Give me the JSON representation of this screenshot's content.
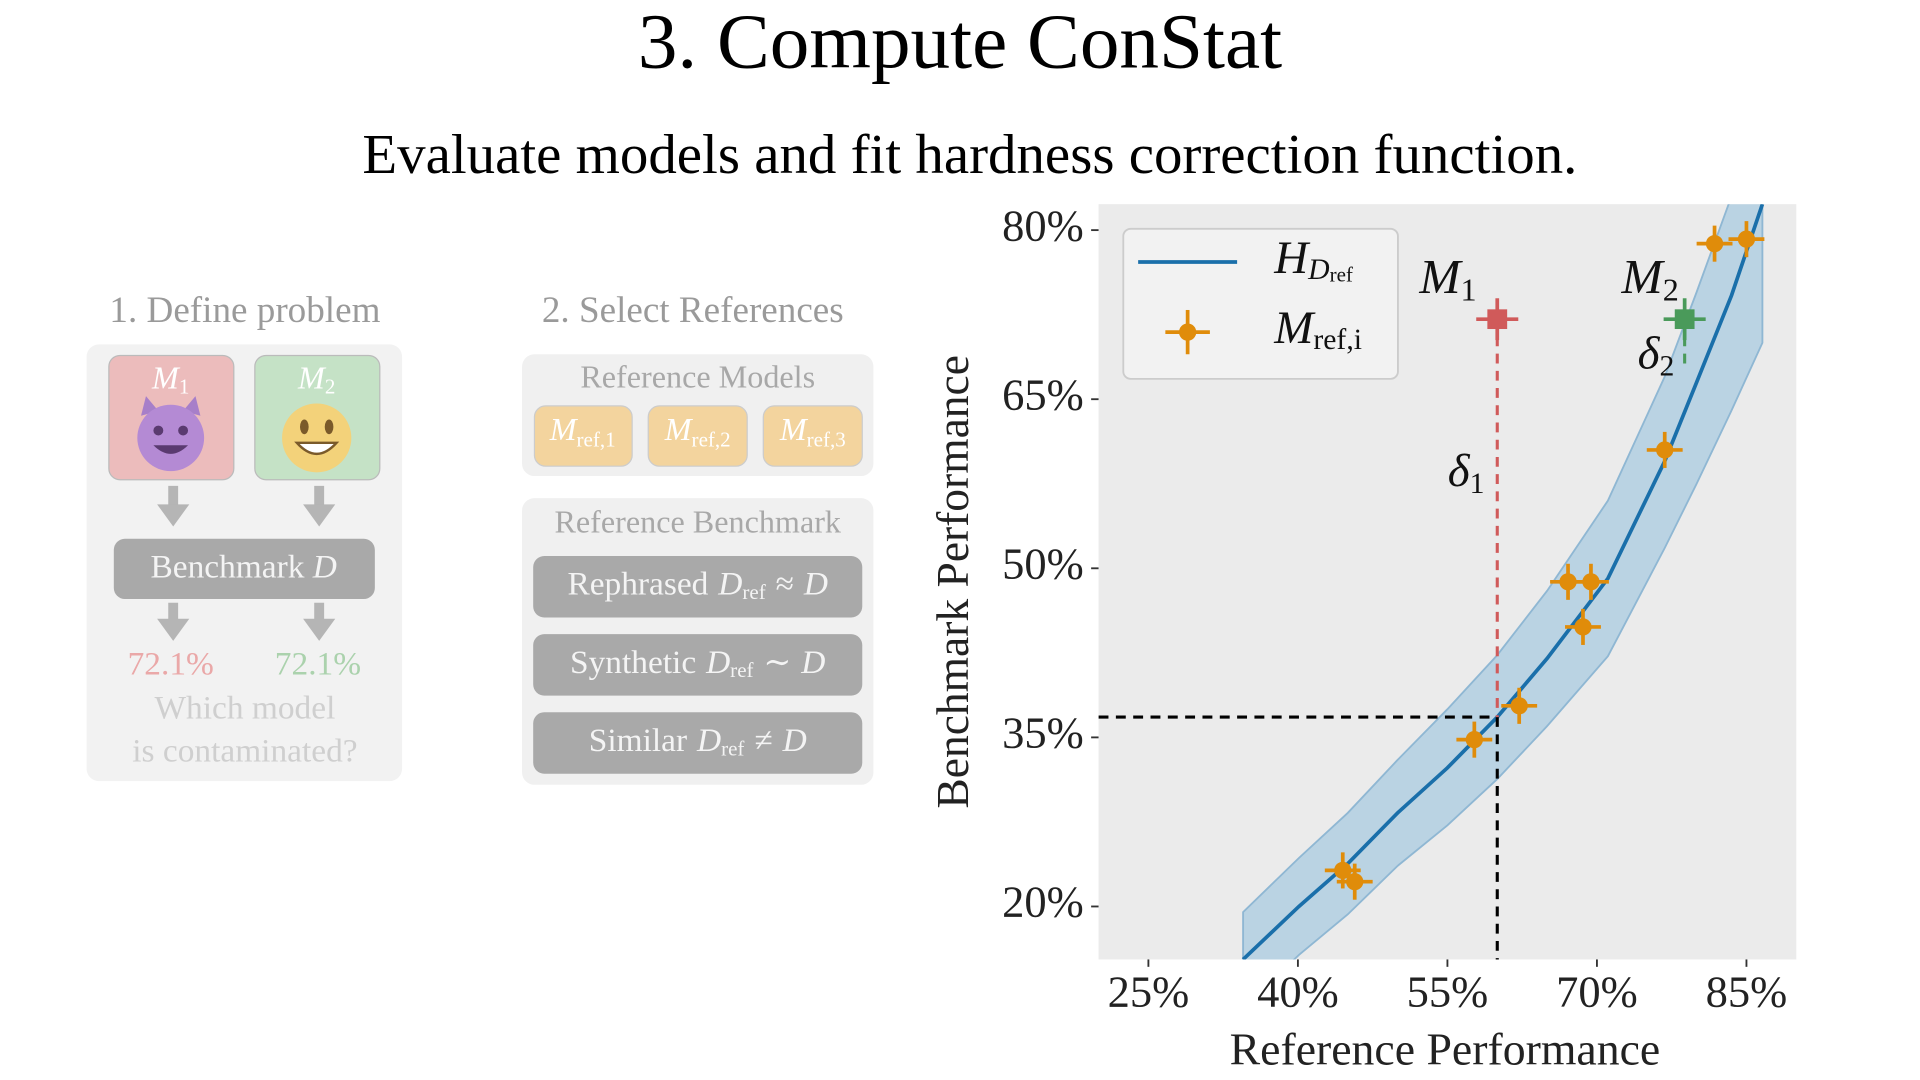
{
  "title": "3. Compute ConStat",
  "subtitle": "Evaluate models and fit hardness correction function.",
  "panel1": {
    "title": "1. Define problem",
    "models": [
      {
        "symbol": "M",
        "sub": "1",
        "score": "72.1%"
      },
      {
        "symbol": "M",
        "sub": "2",
        "score": "72.1%"
      }
    ],
    "benchmark": [
      "Benchmark",
      "D"
    ],
    "question": [
      "Which model",
      "is contaminated?"
    ]
  },
  "panel2": {
    "title": "2. Select References",
    "models_title": "Reference Models",
    "models": [
      [
        "M",
        "ref,1"
      ],
      [
        "M",
        "ref,2"
      ],
      [
        "M",
        "ref,3"
      ]
    ],
    "benchmark_title": "Reference Benchmark",
    "benchmarks": [
      [
        "Rephrased",
        "D",
        "ref",
        "≈",
        "D"
      ],
      [
        "Synthetic",
        "D",
        "ref",
        "∼",
        "D"
      ],
      [
        "Similar",
        "D",
        "ref",
        "≠",
        "D"
      ]
    ]
  },
  "chart_data": {
    "type": "scatter",
    "xlabel": "Reference Performance",
    "ylabel": "Benchmark Performance",
    "xlim": [
      20,
      90
    ],
    "ylim": [
      15.3,
      82.3
    ],
    "xticks": [
      {
        "value": 25,
        "label": "25%"
      },
      {
        "value": 40,
        "label": "40%"
      },
      {
        "value": 55,
        "label": "55%"
      },
      {
        "value": 70,
        "label": "70%"
      },
      {
        "value": 85,
        "label": "85%"
      }
    ],
    "yticks": [
      {
        "value": 20,
        "label": "20%"
      },
      {
        "value": 35,
        "label": "35%"
      },
      {
        "value": 50,
        "label": "50%"
      },
      {
        "value": 65,
        "label": "65%"
      },
      {
        "value": 80,
        "label": "80%"
      }
    ],
    "legend": "upper left",
    "series": [
      {
        "name": [
          "H",
          "D",
          "ref"
        ],
        "color": "#1a6faa",
        "x": [
          34.5,
          40.1,
          45,
          50,
          55,
          60,
          65,
          71.1,
          76.8,
          80,
          83.5,
          86.6
        ],
        "values": [
          15.3,
          20,
          23.8,
          28.3,
          32.3,
          36.8,
          42,
          49.1,
          59.5,
          66.5,
          74.2,
          82.3
        ]
      },
      {
        "name": [
          "M",
          "ref,i"
        ],
        "color": "#e08c0a",
        "x": [
          44.5,
          45.7,
          57.7,
          62.2,
          67.1,
          69.4,
          68.6,
          76.8,
          81.8,
          85.0
        ],
        "values": [
          23.2,
          22.2,
          34.8,
          37.8,
          48.8,
          48.8,
          44.8,
          60.5,
          78.8,
          79.2
        ],
        "xerr": [
          1.8,
          1.8,
          1.8,
          1.8,
          1.8,
          1.8,
          1.8,
          1.8,
          1.8,
          1.8
        ],
        "yerr": [
          1.6,
          1.6,
          1.6,
          1.6,
          1.6,
          1.6,
          1.6,
          1.6,
          1.6,
          1.6
        ]
      }
    ],
    "band": {
      "color": "#a9cbe0",
      "upper": [
        19.5,
        24.3,
        28.3,
        33,
        37.5,
        42.3,
        48,
        56,
        67,
        74.5,
        83,
        90
      ],
      "lower": [
        11,
        15.7,
        19.3,
        23.6,
        27.2,
        31.3,
        36,
        42.2,
        51.8,
        57.5,
        64,
        70
      ]
    },
    "highlighted": [
      {
        "label": [
          "M",
          "1"
        ],
        "delta": [
          "δ",
          "1"
        ],
        "x": 60,
        "y": 72.1,
        "y_curve": 36.8,
        "color": "#d05a5a"
      },
      {
        "label": [
          "M",
          "2"
        ],
        "delta": [
          "δ",
          "2"
        ],
        "x": 78.8,
        "y": 72.1,
        "y_curve": 67.7,
        "color": "#4a9a5a"
      }
    ]
  }
}
